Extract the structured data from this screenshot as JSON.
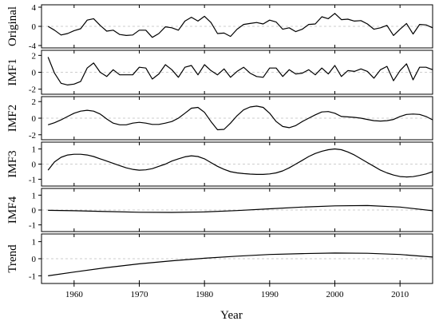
{
  "chart_data": {
    "type": "line",
    "x_axis": {
      "label": "Year",
      "range": [
        1955,
        2015
      ],
      "ticks": [
        1960,
        1970,
        1980,
        1990,
        2000,
        2010
      ],
      "tick_labels": [
        "1960",
        "1970",
        "1980",
        "1990",
        "2000",
        "2010"
      ]
    },
    "panels": [
      {
        "name": "Original",
        "ylim": [
          -4.5,
          4.5
        ],
        "yticks": [
          -4,
          0,
          4
        ],
        "ytick_labels": [
          "-4",
          "0",
          "4"
        ],
        "zero_line": true,
        "x": [
          1956,
          1957,
          1958,
          1959,
          1960,
          1961,
          1962,
          1963,
          1964,
          1965,
          1966,
          1967,
          1968,
          1969,
          1970,
          1971,
          1972,
          1973,
          1974,
          1975,
          1976,
          1977,
          1978,
          1979,
          1980,
          1981,
          1982,
          1983,
          1984,
          1985,
          1986,
          1987,
          1988,
          1989,
          1990,
          1991,
          1992,
          1993,
          1994,
          1995,
          1996,
          1997,
          1998,
          1999,
          2000,
          2001,
          2002,
          2003,
          2004,
          2005,
          2006,
          2007,
          2008,
          2009,
          2010,
          2011,
          2012,
          2013,
          2014,
          2015
        ],
        "y": [
          0.0,
          -0.8,
          -1.8,
          -1.5,
          -0.9,
          -0.5,
          1.3,
          1.6,
          0.2,
          -1.0,
          -0.8,
          -1.7,
          -1.9,
          -1.8,
          -0.8,
          -0.8,
          -2.3,
          -1.5,
          -0.1,
          -0.3,
          -0.8,
          1.1,
          1.9,
          1.1,
          2.1,
          0.8,
          -1.5,
          -1.4,
          -2.1,
          -0.6,
          0.4,
          0.6,
          0.8,
          0.5,
          1.3,
          0.9,
          -0.6,
          -0.3,
          -1.1,
          -0.6,
          0.4,
          0.5,
          2.0,
          1.6,
          2.7,
          1.4,
          1.5,
          1.1,
          1.2,
          0.5,
          -0.6,
          -0.3,
          0.2,
          -1.9,
          -0.6,
          0.6,
          -1.6,
          0.4,
          0.3,
          -0.3
        ]
      },
      {
        "name": "IMF1",
        "ylim": [
          -2.6,
          2.6
        ],
        "yticks": [
          -2,
          0,
          2
        ],
        "ytick_labels": [
          "-2",
          "0",
          "2"
        ],
        "zero_line": true,
        "x": [
          1956,
          1957,
          1958,
          1959,
          1960,
          1961,
          1962,
          1963,
          1964,
          1965,
          1966,
          1967,
          1968,
          1969,
          1970,
          1971,
          1972,
          1973,
          1974,
          1975,
          1976,
          1977,
          1978,
          1979,
          1980,
          1981,
          1982,
          1983,
          1984,
          1985,
          1986,
          1987,
          1988,
          1989,
          1990,
          1991,
          1992,
          1993,
          1994,
          1995,
          1996,
          1997,
          1998,
          1999,
          2000,
          2001,
          2002,
          2003,
          2004,
          2005,
          2006,
          2007,
          2008,
          2009,
          2010,
          2011,
          2012,
          2013,
          2014,
          2015
        ],
        "y": [
          1.8,
          -0.1,
          -1.3,
          -1.5,
          -1.4,
          -1.1,
          0.5,
          1.1,
          0.0,
          -0.5,
          0.3,
          -0.3,
          -0.3,
          -0.3,
          0.6,
          0.5,
          -0.8,
          -0.2,
          0.9,
          0.3,
          -0.6,
          0.6,
          0.8,
          -0.3,
          0.9,
          0.2,
          -0.3,
          0.4,
          -0.6,
          0.1,
          0.6,
          -0.1,
          -0.5,
          -0.6,
          0.5,
          0.5,
          -0.5,
          0.3,
          -0.2,
          -0.1,
          0.3,
          -0.3,
          0.5,
          -0.2,
          0.8,
          -0.5,
          0.2,
          0.1,
          0.4,
          0.1,
          -0.7,
          0.3,
          0.7,
          -1.0,
          0.2,
          1.0,
          -0.9,
          0.6,
          0.6,
          0.3
        ]
      },
      {
        "name": "IMF2",
        "ylim": [
          -2.6,
          2.6
        ],
        "yticks": [
          -2,
          0,
          2
        ],
        "ytick_labels": [
          "-2",
          "0",
          "2"
        ],
        "zero_line": true,
        "x": [
          1956,
          1957,
          1958,
          1959,
          1960,
          1961,
          1962,
          1963,
          1964,
          1965,
          1966,
          1967,
          1968,
          1969,
          1970,
          1971,
          1972,
          1973,
          1974,
          1975,
          1976,
          1977,
          1978,
          1979,
          1980,
          1981,
          1982,
          1983,
          1984,
          1985,
          1986,
          1987,
          1988,
          1989,
          1990,
          1991,
          1992,
          1993,
          1994,
          1995,
          1996,
          1997,
          1998,
          1999,
          2000,
          2001,
          2002,
          2003,
          2004,
          2005,
          2006,
          2007,
          2008,
          2009,
          2010,
          2011,
          2012,
          2013,
          2014,
          2015
        ],
        "y": [
          -0.8,
          -0.55,
          -0.2,
          0.2,
          0.6,
          0.85,
          0.95,
          0.85,
          0.5,
          -0.1,
          -0.6,
          -0.8,
          -0.8,
          -0.6,
          -0.5,
          -0.6,
          -0.75,
          -0.75,
          -0.6,
          -0.4,
          0.0,
          0.6,
          1.2,
          1.3,
          0.7,
          -0.4,
          -1.4,
          -1.35,
          -0.6,
          0.3,
          1.0,
          1.35,
          1.45,
          1.3,
          0.6,
          -0.4,
          -1.0,
          -1.15,
          -0.9,
          -0.4,
          0.0,
          0.4,
          0.75,
          0.8,
          0.6,
          0.2,
          0.15,
          0.1,
          0.0,
          -0.15,
          -0.3,
          -0.35,
          -0.3,
          -0.15,
          0.2,
          0.45,
          0.5,
          0.45,
          0.2,
          -0.2
        ]
      },
      {
        "name": "IMF3",
        "ylim": [
          -1.45,
          1.45
        ],
        "yticks": [
          -1,
          0,
          1
        ],
        "ytick_labels": [
          "-1",
          "0",
          "1"
        ],
        "zero_line": true,
        "x": [
          1956,
          1957,
          1958,
          1959,
          1960,
          1961,
          1962,
          1963,
          1964,
          1965,
          1966,
          1967,
          1968,
          1969,
          1970,
          1971,
          1972,
          1973,
          1974,
          1975,
          1976,
          1977,
          1978,
          1979,
          1980,
          1981,
          1982,
          1983,
          1984,
          1985,
          1986,
          1987,
          1988,
          1989,
          1990,
          1991,
          1992,
          1993,
          1994,
          1995,
          1996,
          1997,
          1998,
          1999,
          2000,
          2001,
          2002,
          2003,
          2004,
          2005,
          2006,
          2007,
          2008,
          2009,
          2010,
          2011,
          2012,
          2013,
          2014,
          2015
        ],
        "y": [
          -0.4,
          0.15,
          0.45,
          0.6,
          0.65,
          0.65,
          0.6,
          0.5,
          0.35,
          0.2,
          0.05,
          -0.1,
          -0.25,
          -0.35,
          -0.4,
          -0.38,
          -0.3,
          -0.15,
          0.0,
          0.2,
          0.35,
          0.48,
          0.55,
          0.5,
          0.35,
          0.1,
          -0.15,
          -0.35,
          -0.5,
          -0.58,
          -0.63,
          -0.66,
          -0.68,
          -0.68,
          -0.65,
          -0.58,
          -0.45,
          -0.25,
          0.0,
          0.25,
          0.5,
          0.7,
          0.85,
          0.95,
          1.0,
          0.95,
          0.8,
          0.6,
          0.35,
          0.1,
          -0.15,
          -0.4,
          -0.58,
          -0.72,
          -0.82,
          -0.85,
          -0.83,
          -0.75,
          -0.65,
          -0.5
        ]
      },
      {
        "name": "IMF4",
        "ylim": [
          -1.45,
          1.45
        ],
        "yticks": [
          -1,
          0,
          1
        ],
        "ytick_labels": [
          "-1",
          "0",
          "1"
        ],
        "zero_line": true,
        "x": [
          1956,
          1960,
          1965,
          1970,
          1975,
          1980,
          1985,
          1990,
          1995,
          2000,
          2005,
          2010,
          2015
        ],
        "y": [
          -0.02,
          -0.05,
          -0.1,
          -0.15,
          -0.16,
          -0.13,
          -0.04,
          0.08,
          0.2,
          0.28,
          0.3,
          0.2,
          -0.05
        ]
      },
      {
        "name": "Trend",
        "ylim": [
          -1.45,
          1.45
        ],
        "yticks": [
          -1,
          0,
          1
        ],
        "ytick_labels": [
          "-1",
          "0",
          "1"
        ],
        "zero_line": true,
        "x": [
          1956,
          1960,
          1965,
          1970,
          1975,
          1980,
          1985,
          1990,
          1995,
          2000,
          2005,
          2010,
          2015
        ],
        "y": [
          -1.0,
          -0.78,
          -0.52,
          -0.3,
          -0.12,
          0.03,
          0.15,
          0.25,
          0.3,
          0.33,
          0.32,
          0.25,
          0.1
        ]
      }
    ]
  }
}
